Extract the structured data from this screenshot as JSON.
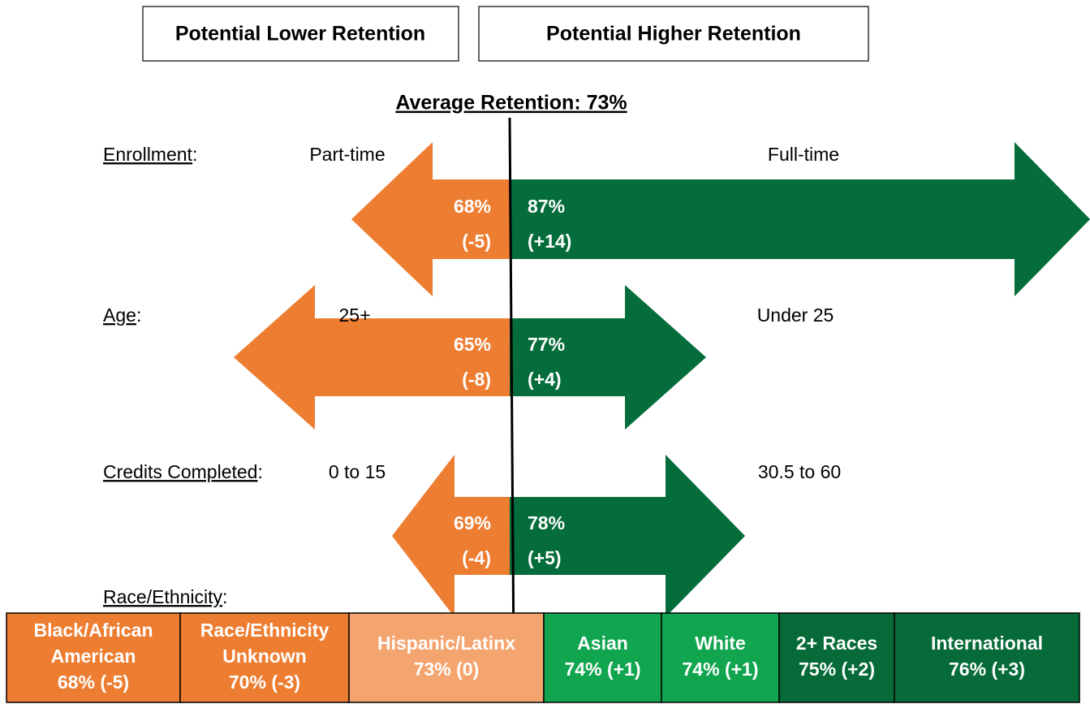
{
  "legend": {
    "lower": "Potential Lower Retention",
    "higher": "Potential Higher Retention"
  },
  "average": "Average Retention: 73%",
  "colon": ":",
  "factors": [
    {
      "label": "Enrollment",
      "low": {
        "name": "Part-time",
        "rate": "68%",
        "change": "(-5)"
      },
      "high": {
        "name": "Full-time",
        "rate": "87%",
        "change": "(+14)"
      }
    },
    {
      "label": "Age",
      "low": {
        "name": "25+",
        "rate": "65%",
        "change": "(-8)"
      },
      "high": {
        "name": "Under 25",
        "rate": "77%",
        "change": "(+4)"
      }
    },
    {
      "label": "Credits Completed",
      "low": {
        "name": "0 to 15",
        "rate": "69%",
        "change": "(-4)"
      },
      "high": {
        "name": "30.5 to 60",
        "rate": "78%",
        "change": "(+5)"
      }
    }
  ],
  "race": {
    "label": "Race/Ethnicity",
    "groups": [
      {
        "lines": [
          "Black/African",
          "American",
          "68% (-5)"
        ],
        "color": "#ed7d31"
      },
      {
        "lines": [
          "Race/Ethnicity",
          "Unknown",
          "70% (-3)"
        ],
        "color": "#ed7d31"
      },
      {
        "lines": [
          "Hispanic/Latinx",
          "73% (0)"
        ],
        "color": "#f4a46e"
      },
      {
        "lines": [
          "Asian",
          "74% (+1)"
        ],
        "color": "#12a550"
      },
      {
        "lines": [
          "White",
          "74% (+1)"
        ],
        "color": "#12a550"
      },
      {
        "lines": [
          "2+ Races",
          "75% (+2)"
        ],
        "color": "#066b38"
      },
      {
        "lines": [
          "International",
          "76% (+3)"
        ],
        "color": "#066b38"
      }
    ]
  }
}
